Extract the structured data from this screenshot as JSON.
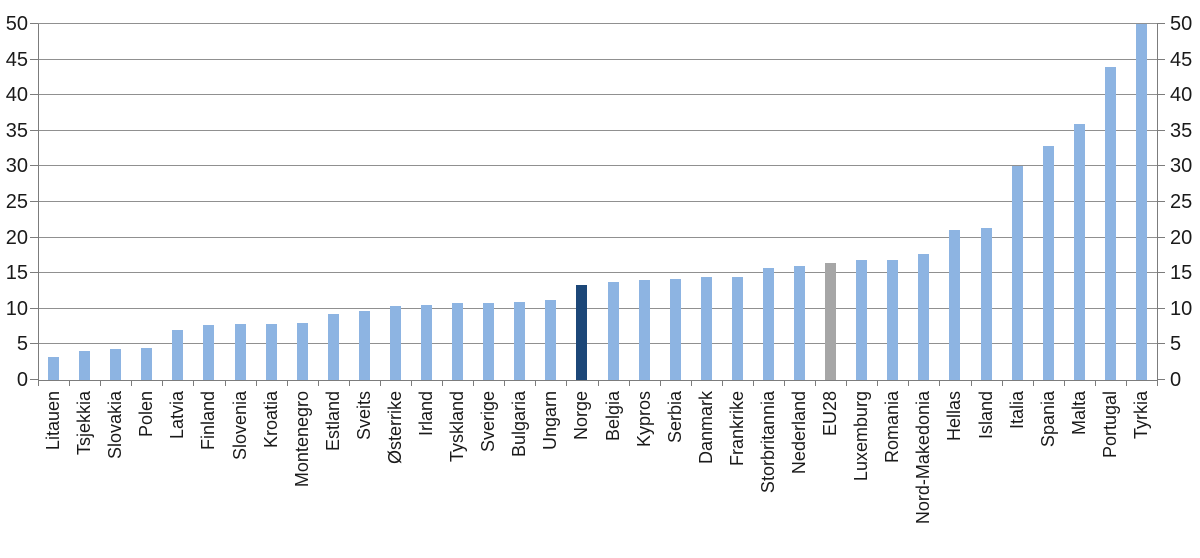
{
  "chart_data": {
    "type": "bar",
    "title": "",
    "xlabel": "",
    "ylabel": "",
    "categories": [
      "Litauen",
      "Tsjekkia",
      "Slovakia",
      "Polen",
      "Latvia",
      "Finland",
      "Slovenia",
      "Kroatia",
      "Montenegro",
      "Estland",
      "Sveits",
      "Østerrike",
      "Irland",
      "Tyskland",
      "Sverige",
      "Bulgaria",
      "Ungarn",
      "Norge",
      "Belgia",
      "Kypros",
      "Serbia",
      "Danmark",
      "Frankrike",
      "Storbritannia",
      "Nederland",
      "EU28",
      "Luxemburg",
      "Romania",
      "Nord-Makedonia",
      "Hellas",
      "Island",
      "Italia",
      "Spania",
      "Malta",
      "Portugal",
      "Tyrkia"
    ],
    "values": [
      3.2,
      4.1,
      4.3,
      4.5,
      7.0,
      7.7,
      7.8,
      7.9,
      8.0,
      9.3,
      9.7,
      10.4,
      10.6,
      10.8,
      10.8,
      11.0,
      11.3,
      13.3,
      13.8,
      14.0,
      14.2,
      14.4,
      14.4,
      15.7,
      16.0,
      16.4,
      16.8,
      16.8,
      17.7,
      21.0,
      21.3,
      30.0,
      32.8,
      35.9,
      43.9,
      50.0
    ],
    "ylim": [
      0,
      50
    ],
    "yticks": [
      0,
      5,
      10,
      15,
      20,
      25,
      30,
      35,
      40,
      45,
      50
    ],
    "dual_y_axis": true,
    "grid": true,
    "legend": "none",
    "default_bar_color": "#8DB4E2",
    "bar_color_overrides": {
      "Norge": "#1C4778",
      "EU28": "#A6A6A6"
    }
  },
  "colors": {
    "bar_default": "#8DB4E2",
    "bar_highlight_norge": "#1C4778",
    "bar_highlight_eu28": "#A6A6A6",
    "gridline": "#909090",
    "axis": "#7C7C7C",
    "text": "#1A1A1A",
    "background": "#FFFFFF"
  }
}
